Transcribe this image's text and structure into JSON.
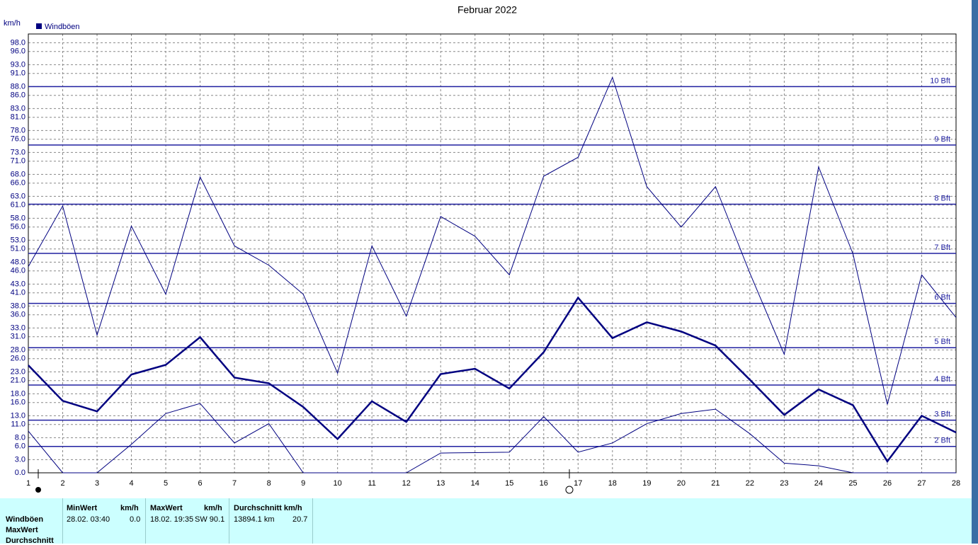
{
  "chart_data": {
    "type": "line",
    "title": "Februar 2022",
    "y_label": "km/h",
    "x": [
      1,
      2,
      3,
      4,
      5,
      6,
      7,
      8,
      9,
      10,
      11,
      12,
      13,
      14,
      15,
      16,
      17,
      18,
      19,
      20,
      21,
      22,
      23,
      24,
      25,
      26,
      27,
      28
    ],
    "xlim": [
      1,
      28
    ],
    "xticks": [
      1,
      2,
      3,
      4,
      5,
      6,
      7,
      8,
      9,
      10,
      11,
      12,
      13,
      14,
      15,
      16,
      17,
      18,
      19,
      20,
      21,
      22,
      23,
      24,
      25,
      26,
      27,
      28
    ],
    "ylim": [
      0,
      100
    ],
    "yticks": [
      {
        "value": 0,
        "label": "0.0"
      },
      {
        "value": 3,
        "label": "3.0"
      },
      {
        "value": 6,
        "label": "6.0"
      },
      {
        "value": 8,
        "label": "8.0"
      },
      {
        "value": 11,
        "label": "11.0"
      },
      {
        "value": 13,
        "label": "13.0"
      },
      {
        "value": 16,
        "label": "16.0"
      },
      {
        "value": 18,
        "label": "18.0"
      },
      {
        "value": 21,
        "label": "21.0"
      },
      {
        "value": 23,
        "label": "23.0"
      },
      {
        "value": 26,
        "label": "26.0"
      },
      {
        "value": 28,
        "label": "28.0"
      },
      {
        "value": 31,
        "label": "31.0"
      },
      {
        "value": 33,
        "label": "33.0"
      },
      {
        "value": 36,
        "label": "36.0"
      },
      {
        "value": 38,
        "label": "38.0"
      },
      {
        "value": 41,
        "label": "41.0"
      },
      {
        "value": 43,
        "label": "43.0"
      },
      {
        "value": 46,
        "label": "46.0"
      },
      {
        "value": 48,
        "label": "48.0"
      },
      {
        "value": 51,
        "label": "51.0"
      },
      {
        "value": 53,
        "label": "53.0"
      },
      {
        "value": 56,
        "label": "56.0"
      },
      {
        "value": 58,
        "label": "58.0"
      },
      {
        "value": 61,
        "label": "61.0"
      },
      {
        "value": 63,
        "label": "63.0"
      },
      {
        "value": 66,
        "label": "66.0"
      },
      {
        "value": 68,
        "label": "68.0"
      },
      {
        "value": 71,
        "label": "71.0"
      },
      {
        "value": 73,
        "label": "73.0"
      },
      {
        "value": 76,
        "label": "76.0"
      },
      {
        "value": 78,
        "label": "78.0"
      },
      {
        "value": 81,
        "label": "81.0"
      },
      {
        "value": 83,
        "label": "83.0"
      },
      {
        "value": 86,
        "label": "86.0"
      },
      {
        "value": 88,
        "label": "88.0"
      },
      {
        "value": 91,
        "label": "91.0"
      },
      {
        "value": 93,
        "label": "93.0"
      },
      {
        "value": 96,
        "label": "96.0"
      },
      {
        "value": 98,
        "label": "98.0"
      }
    ],
    "grid": true,
    "series": [
      {
        "name": "Windböen",
        "color": "#000080",
        "values": [
          24.5,
          16.4,
          14,
          22.4,
          24.6,
          30.9,
          21.7,
          20.4,
          15,
          7.7,
          16.3,
          11.6,
          22.5,
          23.7,
          19.2,
          27.5,
          39.9,
          30.7,
          34.3,
          32.2,
          29,
          21.2,
          13.2,
          19,
          15.4,
          2.6,
          13,
          9.2
        ]
      },
      {
        "color": "#000080",
        "values": [
          47,
          60.8,
          31.4,
          56.2,
          40.7,
          67.4,
          51.7,
          47.3,
          40.7,
          22.7,
          51.7,
          35.7,
          58.4,
          53.9,
          45.1,
          67.6,
          71.9,
          90.1,
          65.2,
          56,
          65.2,
          45.5,
          27,
          69.7,
          49.9,
          15.6,
          45.1,
          35.4
        ]
      },
      {
        "color": "#000080",
        "values": [
          9.5,
          0,
          0,
          6.5,
          13.5,
          15.8,
          6.8,
          11.2,
          0,
          0,
          0,
          0,
          4.5,
          4.6,
          4.7,
          12.8,
          4.7,
          6.8,
          11.2,
          13.5,
          14.5,
          8.9,
          2.2,
          1.6,
          0,
          0,
          0,
          0
        ]
      }
    ],
    "reference_lines": [
      {
        "label": "2 Bft",
        "value": 6
      },
      {
        "label": "3 Bft",
        "value": 12
      },
      {
        "label": "4 Bft",
        "value": 20
      },
      {
        "label": "5 Bft",
        "value": 28.5
      },
      {
        "label": "6 Bft",
        "value": 38.6
      },
      {
        "label": "7 Bft",
        "value": 50
      },
      {
        "label": "8 Bft",
        "value": 61.2
      },
      {
        "label": "9 Bft",
        "value": 74.7
      },
      {
        "label": "10 Bft",
        "value": 88
      }
    ],
    "reference_color": "#2020a0"
  },
  "stats": {
    "row_labels": [
      "Windböen",
      "MaxWert",
      "Durchschnitt"
    ],
    "min": {
      "header": "MinWert",
      "unit": "km/h",
      "time": "28.02.  03:40",
      "value": "0.0"
    },
    "max": {
      "header": "MaxWert",
      "unit": "km/h",
      "time": "18.02.  19:35",
      "value": "SW 90.1"
    },
    "avg": {
      "header": "Durchschnitt km/h",
      "distance": "13894.1 km",
      "value": "20.7"
    }
  }
}
